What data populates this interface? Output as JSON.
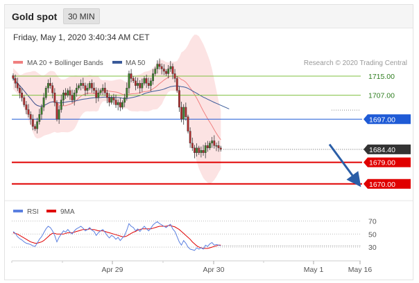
{
  "header": {
    "title": "Gold spot",
    "timeframe": "30 MIN"
  },
  "datetime": "Friday, May 1, 2020 3:40:34 AM CET",
  "credit": "Research © 2020 Trading Central",
  "colors": {
    "bollinger": "#f08080",
    "ma50": "#3a5a99",
    "support_resistance": "#e00000",
    "target": "#7fbf3f",
    "pivot": "#1f5bd6",
    "last_price": "#333333",
    "rsi": "#5a7fe0",
    "rsi_ma": "#e00000",
    "arrow": "#2b5ea7"
  },
  "chart_data": [
    {
      "type": "candlestick",
      "legend": [
        {
          "name": "MA 20 + Bollinger Bands",
          "color": "#f08080"
        },
        {
          "name": "MA 50",
          "color": "#3a5a99"
        }
      ],
      "price_range": [
        1663,
        1730
      ],
      "x_ticks": [
        "Apr 29",
        "Apr 30",
        "May 1",
        "May 16"
      ],
      "levels": [
        {
          "value": 1715.0,
          "label": "1715.00",
          "kind": "target"
        },
        {
          "value": 1707.0,
          "label": "1707.00",
          "kind": "target"
        },
        {
          "value": 1697.0,
          "label": "1697.00",
          "kind": "pivot"
        },
        {
          "value": 1684.4,
          "label": "1684.40",
          "kind": "last"
        },
        {
          "value": 1679.0,
          "label": "1679.00",
          "kind": "support"
        },
        {
          "value": 1670.0,
          "label": "1670.00",
          "kind": "support"
        }
      ],
      "closes": [
        1714,
        1712,
        1710,
        1708,
        1706,
        1703,
        1701,
        1699,
        1697,
        1694,
        1693,
        1696,
        1699,
        1702,
        1706,
        1710,
        1712,
        1711,
        1708,
        1704,
        1697,
        1701,
        1705,
        1708,
        1707,
        1709,
        1707,
        1705,
        1708,
        1710,
        1711,
        1712,
        1711,
        1709,
        1710,
        1712,
        1710,
        1709,
        1706,
        1708,
        1709,
        1710,
        1708,
        1706,
        1704,
        1706,
        1705,
        1703,
        1704,
        1702,
        1704,
        1706,
        1710,
        1716,
        1714,
        1713,
        1711,
        1712,
        1710,
        1712,
        1714,
        1712,
        1711,
        1713,
        1716,
        1718,
        1720,
        1719,
        1718,
        1717,
        1716,
        1718,
        1719,
        1716,
        1714,
        1709,
        1702,
        1697,
        1702,
        1698,
        1692,
        1687,
        1685,
        1683,
        1685,
        1683,
        1684,
        1683,
        1686,
        1685,
        1687,
        1688,
        1686,
        1686,
        1685,
        1684.4
      ]
    },
    {
      "type": "line",
      "indicator": "RSI",
      "legend": [
        {
          "name": "RSI",
          "color": "#5a7fe0"
        },
        {
          "name": "9MA",
          "color": "#e00000"
        }
      ],
      "y_ticks": [
        70,
        50,
        30
      ],
      "rsi": [
        54,
        51,
        46,
        43,
        41,
        38,
        36,
        35,
        34,
        32,
        31,
        36,
        42,
        46,
        52,
        58,
        62,
        60,
        55,
        48,
        38,
        45,
        50,
        55,
        53,
        57,
        53,
        50,
        55,
        58,
        60,
        62,
        59,
        55,
        57,
        60,
        56,
        54,
        48,
        52,
        55,
        57,
        53,
        48,
        44,
        48,
        46,
        42,
        45,
        40,
        44,
        48,
        56,
        66,
        62,
        60,
        55,
        58,
        54,
        58,
        62,
        58,
        55,
        59,
        64,
        67,
        69,
        66,
        64,
        62,
        60,
        63,
        65,
        58,
        54,
        46,
        38,
        33,
        40,
        36,
        30,
        27,
        26,
        25,
        29,
        27,
        29,
        27,
        33,
        31,
        35,
        37,
        33,
        34,
        33,
        32
      ],
      "rsi_ma": [
        52,
        51,
        50,
        48,
        46,
        44,
        42,
        40,
        38,
        37,
        36,
        36,
        37,
        38,
        40,
        43,
        46,
        49,
        51,
        51,
        50,
        50,
        50,
        50,
        51,
        52,
        52,
        52,
        53,
        54,
        55,
        56,
        57,
        57,
        57,
        58,
        57,
        57,
        56,
        55,
        55,
        55,
        54,
        53,
        52,
        51,
        50,
        49,
        48,
        47,
        46,
        46,
        47,
        49,
        51,
        53,
        54,
        56,
        57,
        58,
        58,
        58,
        58,
        58,
        59,
        60,
        61,
        62,
        62,
        62,
        62,
        63,
        63,
        62,
        61,
        59,
        57,
        54,
        51,
        48,
        45,
        42,
        38,
        35,
        32,
        30,
        29,
        28,
        28,
        28,
        29,
        30,
        31,
        32,
        33,
        33
      ]
    }
  ]
}
